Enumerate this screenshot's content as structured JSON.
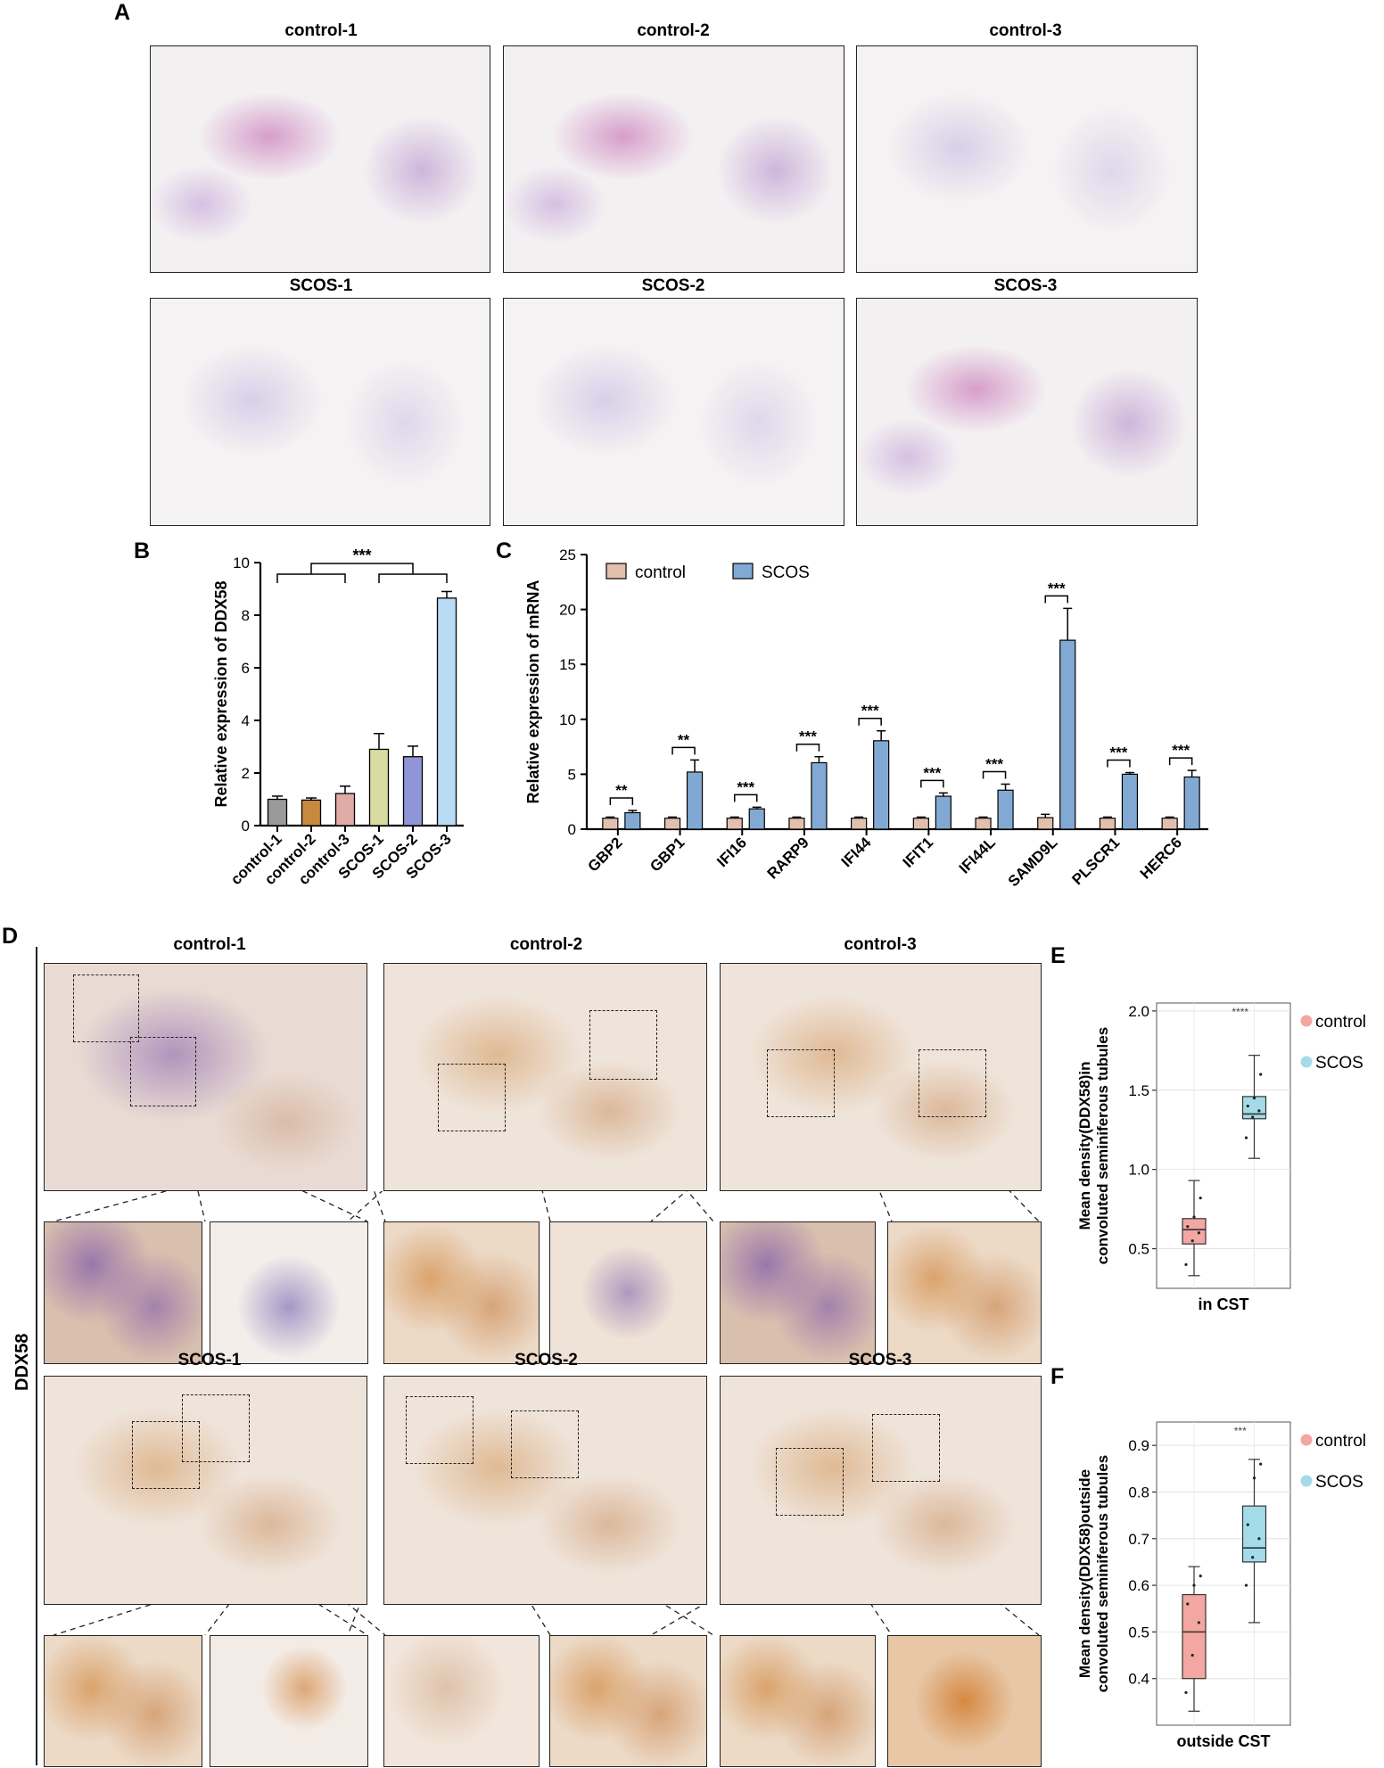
{
  "panels": {
    "A": {
      "letter": "A",
      "titles": [
        "control-1",
        "control-2",
        "control-3",
        "SCOS-1",
        "SCOS-2",
        "SCOS-3"
      ]
    },
    "B": {
      "letter": "B"
    },
    "C": {
      "letter": "C"
    },
    "D": {
      "letter": "D",
      "side_label": "DDX58",
      "titles": [
        "control-1",
        "control-2",
        "control-3",
        "SCOS-1",
        "SCOS-2",
        "SCOS-3"
      ]
    },
    "E": {
      "letter": "E"
    },
    "F": {
      "letter": "F"
    }
  },
  "chart_data": [
    {
      "id": "B",
      "type": "bar",
      "ylabel": "Relative expression of DDX58",
      "ylim": [
        0,
        10
      ],
      "yticks": [
        0,
        2,
        4,
        6,
        8,
        10
      ],
      "categories": [
        "control-1",
        "control-2",
        "control-3",
        "SCOS-1",
        "SCOS-2",
        "SCOS-3"
      ],
      "values": [
        1.0,
        0.97,
        1.22,
        2.9,
        2.62,
        8.65
      ],
      "errors": [
        0.12,
        0.08,
        0.28,
        0.6,
        0.4,
        0.25
      ],
      "colors": [
        "#9a9a9a",
        "#c8893f",
        "#e0aaa7",
        "#d8dca0",
        "#8f95d6",
        "#b9dbf4"
      ],
      "annotation": "***"
    },
    {
      "id": "C",
      "type": "bar",
      "ylabel": "Relative expression of mRNA",
      "ylim": [
        0,
        25
      ],
      "yticks": [
        0,
        5,
        10,
        15,
        20,
        25
      ],
      "categories": [
        "GBP2",
        "GBP1",
        "IFI16",
        "RARP9",
        "IFI44",
        "IFIT1",
        "IFI44L",
        "SAMD9L",
        "PLSCR1",
        "HERC6"
      ],
      "series": [
        {
          "name": "control",
          "color": "#e3c0ad",
          "values": [
            1.0,
            1.0,
            1.0,
            1.0,
            1.0,
            1.0,
            1.0,
            1.05,
            1.0,
            1.0
          ],
          "errors": [
            0.1,
            0.1,
            0.1,
            0.1,
            0.1,
            0.1,
            0.1,
            0.3,
            0.1,
            0.1
          ]
        },
        {
          "name": "SCOS",
          "color": "#82a9d3",
          "values": [
            1.5,
            5.2,
            1.85,
            6.05,
            8.05,
            3.0,
            3.55,
            17.2,
            5.0,
            4.75
          ],
          "errors": [
            0.2,
            1.1,
            0.15,
            0.55,
            0.9,
            0.3,
            0.55,
            2.9,
            0.15,
            0.6
          ]
        }
      ],
      "significance": [
        "**",
        "**",
        "***",
        "***",
        "***",
        "***",
        "***",
        "***",
        "***",
        "***"
      ]
    },
    {
      "id": "E",
      "type": "box",
      "ylabel_line1": "Mean density(DDX58)in",
      "ylabel_line2": "convoluted seminiferous tubules",
      "xlabel": "in CST",
      "ylim": [
        0.25,
        2.05
      ],
      "yticks": [
        0.5,
        1.0,
        1.5,
        2.0
      ],
      "ytick_labels": [
        "0.5",
        "1.0",
        "1.5",
        "2.0"
      ],
      "groups": [
        {
          "name": "control",
          "color": "#f4a6a2",
          "min": 0.33,
          "q1": 0.53,
          "median": 0.62,
          "q3": 0.69,
          "max": 0.93,
          "points": [
            0.4,
            0.55,
            0.6,
            0.64,
            0.7,
            0.82
          ]
        },
        {
          "name": "SCOS",
          "color": "#a4dbe8",
          "min": 1.07,
          "q1": 1.32,
          "median": 1.35,
          "q3": 1.46,
          "max": 1.72,
          "points": [
            1.2,
            1.33,
            1.37,
            1.4,
            1.45,
            1.6
          ]
        }
      ],
      "annotation": "****",
      "legend": [
        "control",
        "SCOS"
      ]
    },
    {
      "id": "F",
      "type": "box",
      "ylabel_line1": "Mean density(DDX58)outside",
      "ylabel_line2": "convoluted seminiferous tubules",
      "xlabel": "outside CST",
      "ylim": [
        0.3,
        0.95
      ],
      "yticks": [
        0.4,
        0.5,
        0.6,
        0.7,
        0.8,
        0.9
      ],
      "ytick_labels": [
        "0.4",
        "0.5",
        "0.6",
        "0.7",
        "0.8",
        "0.9"
      ],
      "groups": [
        {
          "name": "control",
          "color": "#f4a6a2",
          "min": 0.33,
          "q1": 0.4,
          "median": 0.5,
          "q3": 0.58,
          "max": 0.64,
          "points": [
            0.37,
            0.45,
            0.52,
            0.56,
            0.6,
            0.62
          ]
        },
        {
          "name": "SCOS",
          "color": "#a4dbe8",
          "min": 0.52,
          "q1": 0.65,
          "median": 0.68,
          "q3": 0.77,
          "max": 0.87,
          "points": [
            0.6,
            0.66,
            0.7,
            0.73,
            0.83,
            0.86
          ]
        }
      ],
      "annotation": "***",
      "legend": [
        "control",
        "SCOS"
      ]
    }
  ]
}
